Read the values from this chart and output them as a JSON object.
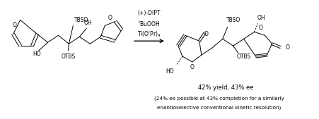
{
  "bg_color": "#ffffff",
  "fig_width": 4.52,
  "fig_height": 1.69,
  "dpi": 100,
  "reagents_line1": "(+)-DIPT",
  "reagents_line2": "$^t$BuOOH",
  "reagents_line3": "Ti(O$^i$Pr)$_4$",
  "yield_text": "42% yield, 43% ee",
  "footnote_line1": "(24% ee possible at 43% completion for a similarly",
  "footnote_line2": "enantioselective conventional kinetic resolution)",
  "font_size_reagents": 5.5,
  "font_size_yield": 6.0,
  "font_size_footnote": 5.2,
  "font_size_struct": 5.5
}
